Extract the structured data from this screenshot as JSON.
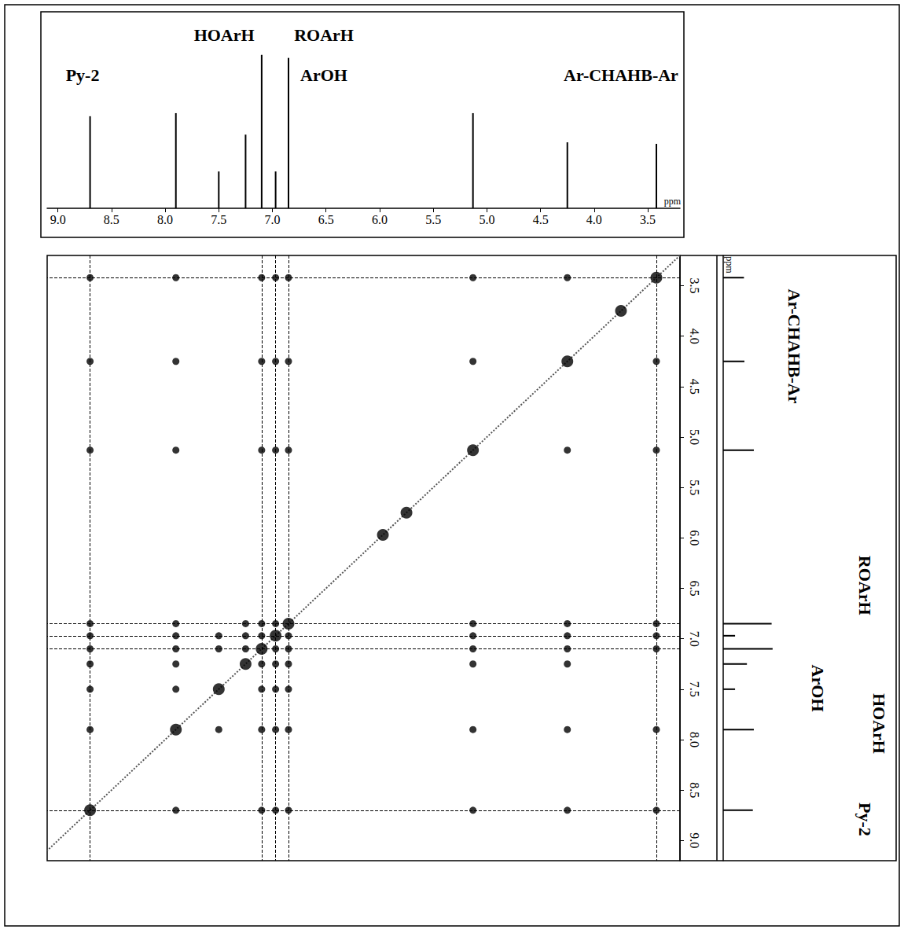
{
  "chart_data": {
    "type": "scatter",
    "grid": false,
    "xlabel": "ppm",
    "ylabel": "ppm",
    "xlim": [
      9.1,
      3.2
    ],
    "xticks": [
      {
        "value": 9,
        "label": "9.0"
      },
      8.5,
      {
        "value": 8,
        "label": "8.0"
      },
      7.5,
      {
        "value": 7,
        "label": "7.0"
      },
      6.5,
      {
        "value": 6,
        "label": "6.0"
      },
      5.5,
      {
        "value": 5,
        "label": "5.0"
      },
      4.5,
      {
        "value": 4,
        "label": "4.0"
      },
      3.5
    ],
    "ylim": [
      9.2,
      3.2
    ],
    "yticks": [
      3.5,
      {
        "value": 4,
        "label": "4.0"
      },
      4.5,
      {
        "value": 5,
        "label": "5.0"
      },
      5.5,
      {
        "value": 6,
        "label": "6.0"
      },
      6.5,
      {
        "value": 7,
        "label": "7.0"
      },
      7.5,
      {
        "value": 8,
        "label": "8.0"
      },
      8.5,
      {
        "value": 9,
        "label": "9.0"
      }
    ],
    "spectrum": {
      "ppm": [
        8.7,
        7.9,
        7.5,
        7.25,
        7.1,
        6.97,
        6.85,
        5.13,
        4.25,
        3.42
      ],
      "intensity": [
        0.6,
        0.62,
        0.24,
        0.48,
        1.0,
        0.24,
        0.98,
        0.62,
        0.43,
        0.42
      ],
      "intensity_lim": [
        0,
        1.05
      ]
    },
    "cross_peaks": [
      [
        8.7,
        3.42
      ],
      [
        7.9,
        3.42
      ],
      [
        7.1,
        3.42
      ],
      [
        6.97,
        3.42
      ],
      [
        6.85,
        3.42
      ],
      [
        5.13,
        3.42
      ],
      [
        4.25,
        3.42
      ],
      [
        3.42,
        3.42
      ],
      [
        8.7,
        4.25
      ],
      [
        7.9,
        4.25
      ],
      [
        7.1,
        4.25
      ],
      [
        6.97,
        4.25
      ],
      [
        6.85,
        4.25
      ],
      [
        5.13,
        4.25
      ],
      [
        4.25,
        4.25
      ],
      [
        3.42,
        4.25
      ],
      [
        8.7,
        5.13
      ],
      [
        7.9,
        5.13
      ],
      [
        7.1,
        5.13
      ],
      [
        6.97,
        5.13
      ],
      [
        6.85,
        5.13
      ],
      [
        5.13,
        5.13
      ],
      [
        4.25,
        5.13
      ],
      [
        3.42,
        5.13
      ],
      [
        8.7,
        6.85
      ],
      [
        7.9,
        6.85
      ],
      [
        7.25,
        6.85
      ],
      [
        7.1,
        6.85
      ],
      [
        6.97,
        6.85
      ],
      [
        6.85,
        6.85
      ],
      [
        5.13,
        6.85
      ],
      [
        4.25,
        6.85
      ],
      [
        3.42,
        6.85
      ],
      [
        8.7,
        6.97
      ],
      [
        7.9,
        6.97
      ],
      [
        7.5,
        6.97
      ],
      [
        7.25,
        6.97
      ],
      [
        7.1,
        6.97
      ],
      [
        6.97,
        6.97
      ],
      [
        6.85,
        6.97
      ],
      [
        5.13,
        6.97
      ],
      [
        4.25,
        6.97
      ],
      [
        3.42,
        6.97
      ],
      [
        8.7,
        7.1
      ],
      [
        7.9,
        7.1
      ],
      [
        7.5,
        7.1
      ],
      [
        7.25,
        7.1
      ],
      [
        7.1,
        7.1
      ],
      [
        6.97,
        7.1
      ],
      [
        6.85,
        7.1
      ],
      [
        5.13,
        7.1
      ],
      [
        4.25,
        7.1
      ],
      [
        3.42,
        7.1
      ],
      [
        8.7,
        7.25
      ],
      [
        7.9,
        7.25
      ],
      [
        7.25,
        7.25
      ],
      [
        7.1,
        7.25
      ],
      [
        6.97,
        7.25
      ],
      [
        6.85,
        7.25
      ],
      [
        5.13,
        7.25
      ],
      [
        4.25,
        7.25
      ],
      [
        8.7,
        7.5
      ],
      [
        7.9,
        7.5
      ],
      [
        7.5,
        7.5
      ],
      [
        7.1,
        7.5
      ],
      [
        6.97,
        7.5
      ],
      [
        6.85,
        7.5
      ],
      [
        8.7,
        7.9
      ],
      [
        7.9,
        7.9
      ],
      [
        7.5,
        7.9
      ],
      [
        7.1,
        7.9
      ],
      [
        6.97,
        7.9
      ],
      [
        6.85,
        7.9
      ],
      [
        5.13,
        7.9
      ],
      [
        4.25,
        7.9
      ],
      [
        3.42,
        7.9
      ],
      [
        8.7,
        8.7
      ],
      [
        7.9,
        8.7
      ],
      [
        7.1,
        8.7
      ],
      [
        6.97,
        8.7
      ],
      [
        6.85,
        8.7
      ],
      [
        5.13,
        8.7
      ],
      [
        4.25,
        8.7
      ],
      [
        3.42,
        8.7
      ],
      [
        3.75,
        3.75
      ],
      [
        5.75,
        5.75
      ],
      [
        5.97,
        5.97
      ]
    ],
    "guides": {
      "x": [
        8.7,
        7.1,
        6.97,
        6.85,
        3.42
      ],
      "y": [
        3.42,
        6.85,
        6.97,
        7.1,
        8.7
      ]
    },
    "top_labels": [
      {
        "text": "Py-2",
        "ppm": 8.77,
        "intensity": 0.87
      },
      {
        "text": "HOArH",
        "ppm": 7.45,
        "intensity": 1.13
      },
      {
        "text": "ROArH",
        "ppm": 6.52,
        "intensity": 1.13
      },
      {
        "text": "ArOH",
        "ppm": 6.52,
        "intensity": 0.87
      },
      {
        "text": "Ar-CHAHB-Ar",
        "ppm": 3.75,
        "intensity": 0.87
      }
    ],
    "side_labels": [
      {
        "text": "Ar-CHAHB-Ar",
        "ppm": 4.1
      },
      {
        "text": "ROArH",
        "ppm": 6.47
      },
      {
        "text": "ArOH",
        "ppm": 7.49
      },
      {
        "text": "HOArH",
        "ppm": 7.84
      },
      {
        "text": "Py-2",
        "ppm": 8.79
      }
    ]
  }
}
